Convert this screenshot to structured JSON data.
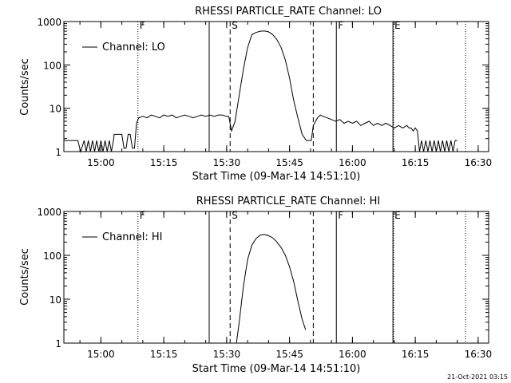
{
  "footer_timestamp": "21-Oct-2021 03:15",
  "chart_data": [
    {
      "type": "line",
      "title": "RHESSI PARTICLE_RATE Channel: LO",
      "xlabel": "Start Time (09-Mar-14 14:51:10)",
      "ylabel": "Counts/sec",
      "y_scale": "log",
      "ylim": [
        1,
        1000
      ],
      "xlim": [
        "14:51:10",
        "16:32:30"
      ],
      "x_tick_labels": [
        "15:00",
        "15:15",
        "15:30",
        "15:45",
        "16:00",
        "16:15",
        "16:30"
      ],
      "x_ticks": [
        "15:00",
        "15:15",
        "15:30",
        "15:45",
        "16:00",
        "16:15",
        "16:30"
      ],
      "y_tick_labels": [
        "1",
        "10",
        "100",
        "1000"
      ],
      "y_ticks": [
        1,
        10,
        100,
        1000
      ],
      "legend_position": "top-left",
      "series": [
        {
          "name": "Channel: LO",
          "x": [
            "14:51:10",
            "14:54:30",
            "14:55:10",
            "14:56:00",
            "14:56:30",
            "14:57:00",
            "14:57:30",
            "14:58:00",
            "14:58:30",
            "14:59:00",
            "14:59:30",
            "15:00:00",
            "15:00:30",
            "15:01:00",
            "15:01:30",
            "15:02:00",
            "15:02:30",
            "15:03:00",
            "15:03:10",
            "15:03:40",
            "15:04:20",
            "15:05:00",
            "15:05:30",
            "15:06:00",
            "15:06:30",
            "15:07:00",
            "15:07:30",
            "15:08:00",
            "15:08:30",
            "15:09:00",
            "15:10:00",
            "15:11:00",
            "15:12:00",
            "15:13:00",
            "15:14:00",
            "15:15:00",
            "15:16:00",
            "15:17:00",
            "15:18:00",
            "15:19:00",
            "15:20:00",
            "15:21:00",
            "15:22:00",
            "15:23:00",
            "15:24:00",
            "15:25:00",
            "15:26:00",
            "15:27:00",
            "15:28:00",
            "15:29:00",
            "15:29:50",
            "15:30:30",
            "15:31:10",
            "15:32:00",
            "15:33:00",
            "15:34:00",
            "15:35:00",
            "15:36:00",
            "15:37:00",
            "15:38:00",
            "15:39:00",
            "15:40:00",
            "15:41:00",
            "15:42:00",
            "15:43:00",
            "15:44:00",
            "15:45:00",
            "15:46:00",
            "15:47:00",
            "15:48:00",
            "15:49:00",
            "15:49:40",
            "15:50:10",
            "15:50:40",
            "15:51:40",
            "15:52:20",
            "15:53:00",
            "15:54:00",
            "15:55:00",
            "15:56:00",
            "15:57:00",
            "15:58:00",
            "15:59:00",
            "16:00:00",
            "16:01:00",
            "16:02:00",
            "16:03:00",
            "16:04:00",
            "16:05:00",
            "16:06:00",
            "16:07:00",
            "16:08:00",
            "16:09:00",
            "16:10:00",
            "16:11:00",
            "16:12:00",
            "16:13:00",
            "16:13:30",
            "16:14:00",
            "16:14:30",
            "16:15:00",
            "16:15:30",
            "16:16:00",
            "16:16:30",
            "16:17:00",
            "16:17:30",
            "16:18:00",
            "16:18:30",
            "16:19:00",
            "16:19:30",
            "16:20:00",
            "16:20:30",
            "16:21:00",
            "16:21:30",
            "16:22:00",
            "16:22:30",
            "16:23:00",
            "16:23:30",
            "16:24:00",
            "16:24:30",
            "16:25:00"
          ],
          "y": [
            1.8,
            1.8,
            1,
            1.8,
            1,
            1.8,
            1,
            1.8,
            1,
            1.8,
            1,
            1.8,
            1,
            1.8,
            1,
            1.8,
            1,
            1.8,
            2.5,
            2.5,
            2.5,
            2.5,
            1.2,
            1.2,
            2.5,
            2.5,
            1.2,
            1.2,
            4.5,
            6,
            6.5,
            6,
            7,
            6.5,
            6,
            7,
            6.5,
            7,
            6,
            6.5,
            7,
            6.5,
            6,
            6.5,
            7,
            6.5,
            7,
            6.5,
            7,
            7,
            6.5,
            6.5,
            3,
            5,
            20,
            80,
            250,
            500,
            560,
            600,
            610,
            580,
            500,
            380,
            250,
            130,
            50,
            15,
            6,
            2.5,
            1.8,
            1.8,
            1.8,
            4,
            6,
            7,
            6.5,
            6,
            5.5,
            5,
            5.5,
            4.5,
            5,
            4.5,
            5,
            4,
            4.5,
            5,
            4,
            4.5,
            4,
            4.5,
            4,
            3.5,
            4,
            3.5,
            4,
            3.5,
            3.5,
            3,
            3.5,
            3,
            1,
            1.8,
            1,
            1.8,
            1,
            1.8,
            1,
            1.8,
            1,
            1.8,
            1,
            1.8,
            1,
            1.8,
            1,
            1.8,
            1,
            1.8,
            1.8
          ]
        }
      ],
      "annotations": [
        {
          "time": "15:08:50",
          "label": "F",
          "style": "dotted"
        },
        {
          "time": "15:25:50",
          "label": "",
          "style": "solid"
        },
        {
          "time": "15:30:50",
          "label": "S",
          "style": "dashed"
        },
        {
          "time": "15:50:40",
          "label": "",
          "style": "dashed"
        },
        {
          "time": "15:56:10",
          "label": "F",
          "style": "solid"
        },
        {
          "time": "16:09:40",
          "label": "E",
          "style": "solid"
        },
        {
          "time": "16:09:50",
          "label": "",
          "style": "dotted"
        },
        {
          "time": "16:27:00",
          "label": "",
          "style": "dotted"
        }
      ]
    },
    {
      "type": "line",
      "title": "RHESSI PARTICLE_RATE Channel: HI",
      "xlabel": "Start Time (09-Mar-14 14:51:10)",
      "ylabel": "Counts/sec",
      "y_scale": "log",
      "ylim": [
        1,
        1000
      ],
      "xlim": [
        "14:51:10",
        "16:32:30"
      ],
      "x_tick_labels": [
        "15:00",
        "15:15",
        "15:30",
        "15:45",
        "16:00",
        "16:15",
        "16:30"
      ],
      "x_ticks": [
        "15:00",
        "15:15",
        "15:30",
        "15:45",
        "16:00",
        "16:15",
        "16:30"
      ],
      "y_tick_labels": [
        "1",
        "10",
        "100",
        "1000"
      ],
      "y_ticks": [
        1,
        10,
        100,
        1000
      ],
      "legend_position": "top-left",
      "series": [
        {
          "name": "Channel: HI",
          "x": [
            "15:32:20",
            "15:33:00",
            "15:34:00",
            "15:35:00",
            "15:36:00",
            "15:37:00",
            "15:38:00",
            "15:39:00",
            "15:40:00",
            "15:41:00",
            "15:42:00",
            "15:43:00",
            "15:44:00",
            "15:45:00",
            "15:46:00",
            "15:47:00",
            "15:48:00",
            "15:48:50"
          ],
          "y": [
            1,
            3,
            20,
            80,
            170,
            240,
            290,
            300,
            280,
            250,
            200,
            150,
            100,
            55,
            25,
            9,
            3.5,
            2
          ]
        }
      ],
      "annotations": [
        {
          "time": "15:08:50",
          "label": "F",
          "style": "dotted"
        },
        {
          "time": "15:25:50",
          "label": "",
          "style": "solid"
        },
        {
          "time": "15:30:50",
          "label": "S",
          "style": "dashed"
        },
        {
          "time": "15:50:40",
          "label": "",
          "style": "dashed"
        },
        {
          "time": "15:56:10",
          "label": "F",
          "style": "solid"
        },
        {
          "time": "16:09:40",
          "label": "E",
          "style": "solid"
        },
        {
          "time": "16:09:50",
          "label": "",
          "style": "dotted"
        },
        {
          "time": "16:27:00",
          "label": "",
          "style": "dotted"
        }
      ]
    }
  ]
}
